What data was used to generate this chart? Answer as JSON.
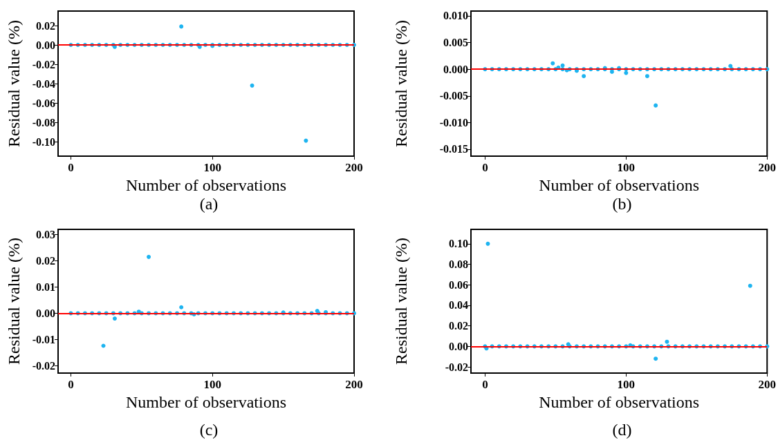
{
  "chart_data": [
    {
      "type": "scatter",
      "xlabel": "Number of observations",
      "ylabel": "Residual value (%)",
      "annotations": [
        "(a)"
      ],
      "marker": "circle",
      "xlim": [
        -9,
        200
      ],
      "xticks": [
        0,
        100,
        200
      ],
      "ylim": [
        -0.115,
        0.035
      ],
      "yticks": [
        {
          "value": -0.1,
          "label": "-0.10"
        },
        {
          "value": -0.08,
          "label": "-0.08"
        },
        {
          "value": -0.06,
          "label": "-0.06"
        },
        {
          "value": -0.04,
          "label": "-0.04"
        },
        {
          "value": -0.02,
          "label": "-0.02"
        },
        {
          "value": 0,
          "label": "0.00"
        },
        {
          "value": 0.02,
          "label": "0.02"
        }
      ],
      "ref_lines": [
        {
          "axis": "y",
          "value": 0,
          "color": "#ff0000"
        }
      ],
      "series": [
        {
          "color": "#1eb4f0",
          "x": [
            0,
            5,
            10,
            15,
            20,
            25,
            30,
            35,
            40,
            45,
            50,
            55,
            60,
            65,
            70,
            75,
            80,
            85,
            90,
            95,
            100,
            105,
            110,
            115,
            120,
            125,
            130,
            135,
            140,
            145,
            150,
            155,
            160,
            165,
            170,
            175,
            180,
            185,
            190,
            195,
            200,
            31,
            78,
            91,
            100,
            128,
            166
          ],
          "values": [
            0,
            0,
            0,
            0,
            0,
            0,
            0,
            0,
            0,
            0,
            0,
            0,
            0,
            0,
            0,
            0,
            0,
            0,
            0,
            0,
            0,
            0,
            0,
            0,
            0,
            0,
            0,
            0,
            0,
            0,
            0,
            0,
            0,
            0,
            0,
            0,
            0,
            0,
            0,
            0,
            0,
            -0.002,
            0.019,
            -0.002,
            -0.001,
            -0.042,
            -0.099
          ]
        }
      ]
    },
    {
      "type": "scatter",
      "xlabel": "Number of observations",
      "ylabel": "Residual value (%)",
      "annotations": [
        "(b)"
      ],
      "marker": "circle",
      "xlim": [
        -10,
        200
      ],
      "xticks": [
        0,
        100,
        200
      ],
      "ylim": [
        -0.0163,
        0.0109
      ],
      "yticks": [
        {
          "value": -0.015,
          "label": "-0.015"
        },
        {
          "value": -0.01,
          "label": "-0.010"
        },
        {
          "value": -0.005,
          "label": "-0.005"
        },
        {
          "value": 0,
          "label": "0.000"
        },
        {
          "value": 0.005,
          "label": "0.005"
        },
        {
          "value": 0.01,
          "label": "0.010"
        }
      ],
      "ref_lines": [
        {
          "axis": "y",
          "value": 0,
          "color": "#ff0000"
        }
      ],
      "series": [
        {
          "color": "#1eb4f0",
          "x": [
            0,
            5,
            10,
            15,
            20,
            25,
            30,
            35,
            40,
            45,
            50,
            55,
            60,
            65,
            70,
            75,
            80,
            85,
            90,
            95,
            100,
            105,
            110,
            115,
            120,
            125,
            130,
            135,
            140,
            145,
            150,
            155,
            160,
            165,
            170,
            175,
            180,
            185,
            190,
            195,
            200,
            48,
            52,
            55,
            58,
            65,
            70,
            85,
            90,
            95,
            100,
            115,
            121,
            174
          ],
          "values": [
            0,
            0,
            0,
            0,
            0,
            0,
            0,
            0,
            0,
            0,
            0,
            0,
            0,
            0,
            0,
            0,
            0,
            0,
            0,
            0,
            0,
            0,
            0,
            0,
            0,
            0,
            0,
            0,
            0,
            0,
            0,
            0,
            0,
            0,
            0,
            0,
            0,
            0,
            0,
            0,
            0,
            0.0011,
            0.0003,
            0.0007,
            -0.0002,
            -0.0003,
            -0.0013,
            0.0002,
            -0.0005,
            0.0002,
            -0.0007,
            -0.0013,
            -0.0068,
            0.0006
          ]
        }
      ]
    },
    {
      "type": "scatter",
      "xlabel": "Number of observations",
      "ylabel": "Residual value (%)",
      "annotations": [
        "(c)"
      ],
      "marker": "circle",
      "xlim": [
        -9,
        200
      ],
      "xticks": [
        0,
        100,
        200
      ],
      "ylim": [
        -0.0228,
        0.032
      ],
      "yticks": [
        {
          "value": -0.02,
          "label": "-0.02"
        },
        {
          "value": -0.01,
          "label": "-0.01"
        },
        {
          "value": 0,
          "label": "0.00"
        },
        {
          "value": 0.01,
          "label": "0.01"
        },
        {
          "value": 0.02,
          "label": "0.02"
        },
        {
          "value": 0.03,
          "label": "0.03"
        }
      ],
      "ref_lines": [
        {
          "axis": "y",
          "value": 0,
          "color": "#ff0000"
        }
      ],
      "series": [
        {
          "color": "#1eb4f0",
          "x": [
            0,
            5,
            10,
            15,
            20,
            25,
            30,
            35,
            40,
            45,
            50,
            55,
            60,
            65,
            70,
            75,
            80,
            85,
            90,
            95,
            100,
            105,
            110,
            115,
            120,
            125,
            130,
            135,
            140,
            145,
            150,
            155,
            160,
            165,
            170,
            175,
            180,
            185,
            190,
            195,
            200,
            23,
            31,
            48,
            55,
            78,
            87,
            150,
            174,
            180
          ],
          "values": [
            0,
            0,
            0,
            0,
            0,
            0,
            0,
            0,
            0,
            0,
            0,
            0,
            0,
            0,
            0,
            0,
            0,
            0,
            0,
            0,
            0,
            0,
            0,
            0,
            0,
            0,
            0,
            0,
            0,
            0,
            0,
            0,
            0,
            0,
            0,
            0,
            0,
            0,
            0,
            0,
            0,
            -0.0124,
            -0.002,
            0.0006,
            0.0215,
            0.0023,
            -0.0004,
            0.0003,
            0.0009,
            0.0004
          ]
        }
      ]
    },
    {
      "type": "scatter",
      "xlabel": "Number of observations",
      "ylabel": "Residual value (%)",
      "annotations": [
        "(d)"
      ],
      "marker": "circle",
      "xlim": [
        -10,
        200
      ],
      "xticks": [
        0,
        100,
        200
      ],
      "ylim": [
        -0.026,
        0.114
      ],
      "yticks": [
        {
          "value": -0.02,
          "label": "-0.02"
        },
        {
          "value": 0,
          "label": "0.00"
        },
        {
          "value": 0.02,
          "label": "0.02"
        },
        {
          "value": 0.04,
          "label": "0.04"
        },
        {
          "value": 0.06,
          "label": "0.06"
        },
        {
          "value": 0.08,
          "label": "0.08"
        },
        {
          "value": 0.1,
          "label": "0.10"
        }
      ],
      "ref_lines": [
        {
          "axis": "y",
          "value": 0,
          "color": "#ff0000"
        }
      ],
      "series": [
        {
          "color": "#1eb4f0",
          "x": [
            0,
            5,
            10,
            15,
            20,
            25,
            30,
            35,
            40,
            45,
            50,
            55,
            60,
            65,
            70,
            75,
            80,
            85,
            90,
            95,
            100,
            105,
            110,
            115,
            120,
            125,
            130,
            135,
            140,
            145,
            150,
            155,
            160,
            165,
            170,
            175,
            180,
            185,
            190,
            195,
            200,
            1,
            2,
            59,
            103,
            121,
            129,
            188
          ],
          "values": [
            0,
            0,
            0,
            0,
            0,
            0,
            0,
            0,
            0,
            0,
            0,
            0,
            0,
            0,
            0,
            0,
            0,
            0,
            0,
            0,
            0,
            0,
            0,
            0,
            0,
            0,
            0,
            0,
            0,
            0,
            0,
            0,
            0,
            0,
            0,
            0,
            0,
            0,
            0,
            0,
            0,
            -0.002,
            0.1,
            0.002,
            0.001,
            -0.012,
            0.0045,
            0.059
          ]
        }
      ]
    }
  ]
}
